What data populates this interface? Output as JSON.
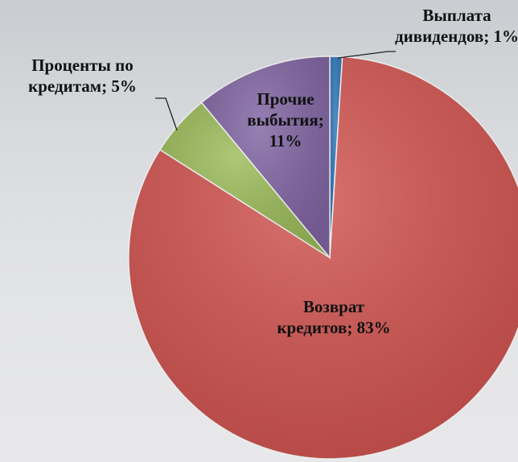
{
  "chart_data": {
    "type": "pie",
    "categories": [
      "Выплата дивидендов",
      "Возврат кредитов",
      "Проценты по кредитам",
      "Прочие выбытия"
    ],
    "values": [
      1,
      83,
      5,
      11
    ],
    "value_labels": [
      "1%",
      "83%",
      "5%",
      "11%"
    ],
    "label_separator": ";",
    "colors": [
      "#2e75b6",
      "#d0534f",
      "#9bbb59",
      "#8064a2"
    ]
  }
}
